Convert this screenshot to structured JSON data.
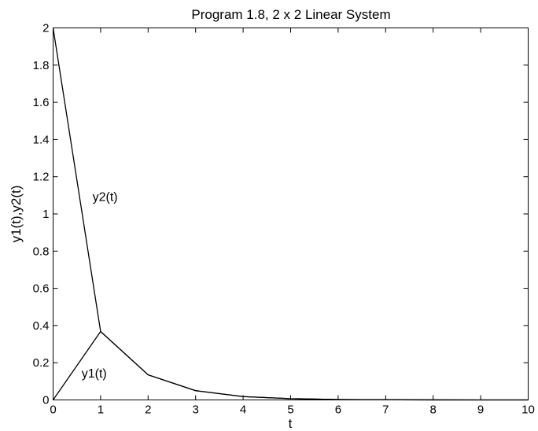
{
  "chart_data": {
    "type": "line",
    "title": "Program 1.8, 2 x 2 Linear System",
    "xlabel": "t",
    "ylabel": "y1(t),y2(t)",
    "xlim": [
      0,
      10
    ],
    "ylim": [
      0,
      2
    ],
    "xticks": [
      0,
      1,
      2,
      3,
      4,
      5,
      6,
      7,
      8,
      9,
      10
    ],
    "yticks": [
      0,
      0.2,
      0.4,
      0.6,
      0.8,
      1,
      1.2,
      1.4,
      1.6,
      1.8,
      2
    ],
    "grid": false,
    "legend": "none",
    "x": [
      0,
      1,
      2,
      3,
      4,
      5,
      6,
      7,
      8,
      9,
      10
    ],
    "series": [
      {
        "name": "y1(t)",
        "values": [
          0,
          0.368,
          0.135,
          0.05,
          0.018,
          0.007,
          0.002,
          0.001,
          0.0003,
          0.0001,
          5e-05
        ]
      },
      {
        "name": "y2(t)",
        "values": [
          2,
          0.368,
          0.135,
          0.05,
          0.018,
          0.007,
          0.002,
          0.001,
          0.0003,
          0.0001,
          5e-05
        ]
      }
    ],
    "annotations": [
      {
        "text": "y2(t)",
        "x": 0.83,
        "y": 1.07
      },
      {
        "text": "y1(t)",
        "x": 0.6,
        "y": 0.12
      }
    ],
    "colors": {
      "line": "#000000",
      "axes": "#000000",
      "background": "#ffffff"
    }
  }
}
